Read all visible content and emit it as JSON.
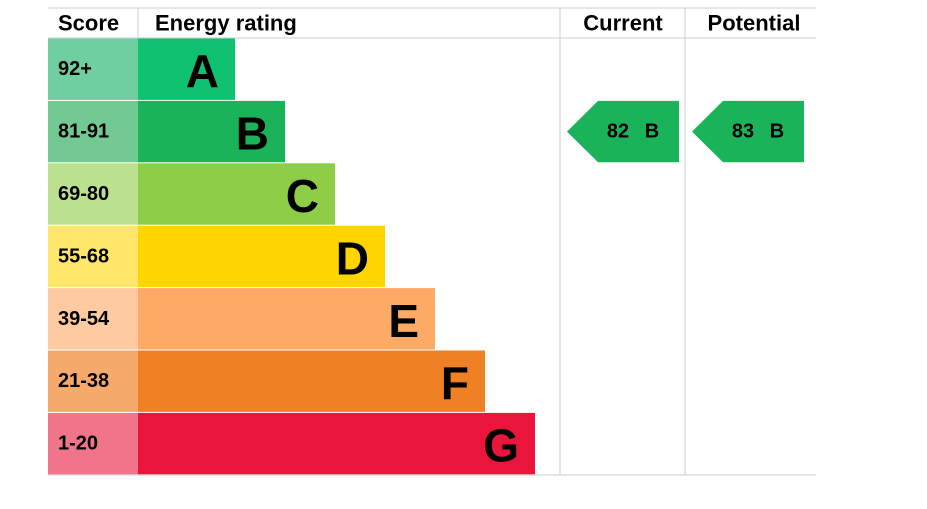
{
  "header": {
    "score": "Score",
    "rating": "Energy rating",
    "current": "Current",
    "potential": "Potential"
  },
  "bands": [
    {
      "score": "92+",
      "letter": "A",
      "color": "#0ec271",
      "light": "#6fcfa0"
    },
    {
      "score": "81-91",
      "letter": "B",
      "color": "#1bb35a",
      "light": "#72c991"
    },
    {
      "score": "69-80",
      "letter": "C",
      "color": "#8dce46",
      "light": "#bbe18f"
    },
    {
      "score": "55-68",
      "letter": "D",
      "color": "#ffd500",
      "light": "#ffe76b"
    },
    {
      "score": "39-54",
      "letter": "E",
      "color": "#fcaa65",
      "light": "#fdcaa2"
    },
    {
      "score": "21-38",
      "letter": "F",
      "color": "#ef8023",
      "light": "#f5aa6c"
    },
    {
      "score": "1-20",
      "letter": "G",
      "color": "#e9153b",
      "light": "#f0758a"
    }
  ],
  "current": {
    "score": 82,
    "band": "B"
  },
  "potential": {
    "score": 83,
    "band": "B"
  }
}
